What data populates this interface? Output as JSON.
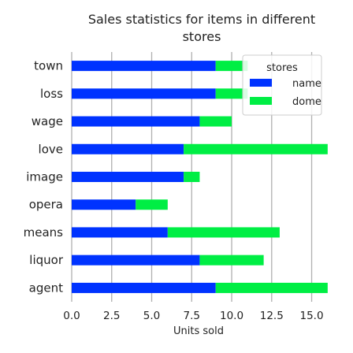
{
  "chart_data": {
    "type": "bar",
    "orientation": "horizontal",
    "stacked": true,
    "title": "Sales statistics for items in different stores",
    "xlabel": "Units sold",
    "ylabel": "",
    "xlim": [
      0,
      16.5
    ],
    "xticks": [
      "0.0",
      "2.5",
      "5.0",
      "7.5",
      "10.0",
      "12.5",
      "15.0"
    ],
    "xtick_values": [
      0,
      2.5,
      5,
      7.5,
      10,
      12.5,
      15
    ],
    "grid": "vertical",
    "categories": [
      "town",
      "loss",
      "wage",
      "love",
      "image",
      "opera",
      "means",
      "liquor",
      "agent"
    ],
    "series": [
      {
        "name": "name",
        "color": "#0033ff",
        "values": [
          9,
          9,
          8,
          7,
          7,
          4,
          6,
          8,
          9
        ]
      },
      {
        "name": "dome",
        "color": "#00ee44",
        "values": [
          2,
          2,
          2,
          9,
          1,
          2,
          7,
          4,
          7
        ]
      }
    ],
    "legend": {
      "title": "stores",
      "position": "top-right"
    }
  }
}
